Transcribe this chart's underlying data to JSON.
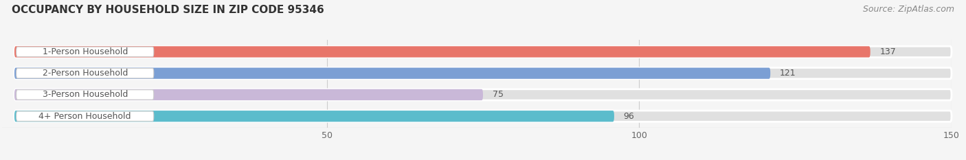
{
  "title": "OCCUPANCY BY HOUSEHOLD SIZE IN ZIP CODE 95346",
  "source": "Source: ZipAtlas.com",
  "categories": [
    "1-Person Household",
    "2-Person Household",
    "3-Person Household",
    "4+ Person Household"
  ],
  "values": [
    137,
    121,
    75,
    96
  ],
  "bar_colors": [
    "#e8756a",
    "#7b9fd4",
    "#c9b8d8",
    "#5bbccc"
  ],
  "xlim": [
    0,
    150
  ],
  "xticks": [
    50,
    100,
    150
  ],
  "background_color": "#f5f5f5",
  "bar_bg_color": "#e0e0e0",
  "label_bg_color": "#ffffff",
  "label_text_color": "#555555",
  "value_text_color": "#555555",
  "title_fontsize": 11,
  "source_fontsize": 9,
  "label_fontsize": 9,
  "value_fontsize": 9,
  "bar_height": 0.52,
  "bar_gap": 0.12
}
